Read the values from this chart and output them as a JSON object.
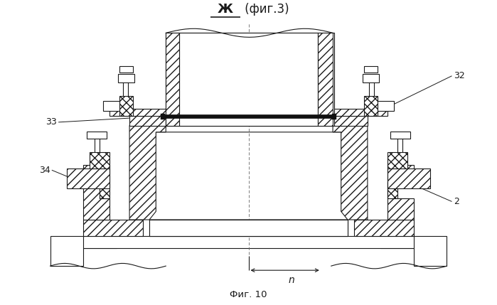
{
  "title_zh": "Ж",
  "title_rest": " (фиг.3)",
  "caption": "Фиг. 10",
  "label_32": "32",
  "label_33": "33",
  "label_34": "34",
  "label_2": "2",
  "label_n": "n",
  "bg_color": "#ffffff",
  "line_color": "#1a1a1a",
  "fig_width": 6.99,
  "fig_height": 4.29
}
